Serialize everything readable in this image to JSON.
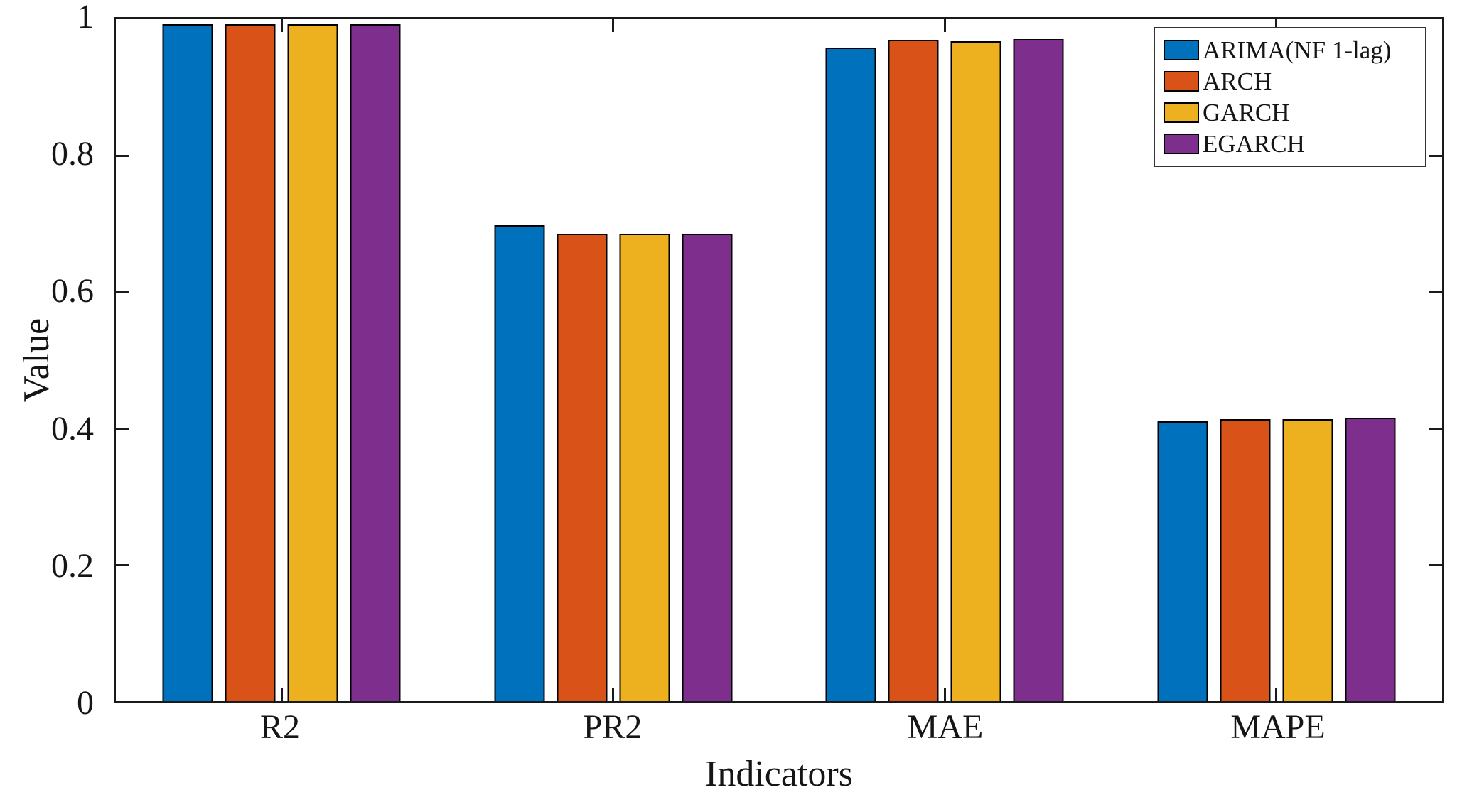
{
  "figure": {
    "background": "#ffffff",
    "axis_color": "#1a1a1a",
    "bar_edge_color": "#000000"
  },
  "chart_data": {
    "type": "bar",
    "title": "",
    "xlabel": "Indicators",
    "ylabel": "Value",
    "categories": [
      "R2",
      "PR2",
      "MAE",
      "MAPE"
    ],
    "series": [
      {
        "name": "ARIMA(NF 1-lag)",
        "color": "#0072BD",
        "values": [
          0.993,
          0.698,
          0.958,
          0.41
        ]
      },
      {
        "name": "ARCH",
        "color": "#D95319",
        "values": [
          0.993,
          0.685,
          0.97,
          0.414
        ]
      },
      {
        "name": "GARCH",
        "color": "#EDB120",
        "values": [
          0.993,
          0.685,
          0.968,
          0.414
        ]
      },
      {
        "name": "EGARCH",
        "color": "#7E2F8E",
        "values": [
          0.993,
          0.685,
          0.971,
          0.416
        ]
      }
    ],
    "ylim": [
      0,
      1
    ],
    "yticks": [
      {
        "value": 0,
        "label": "0"
      },
      {
        "value": 0.2,
        "label": "0.2"
      },
      {
        "value": 0.4,
        "label": "0.4"
      },
      {
        "value": 0.6,
        "label": "0.6"
      },
      {
        "value": 0.8,
        "label": "0.8"
      },
      {
        "value": 1,
        "label": "1"
      }
    ],
    "grid": false,
    "legend_position": "top-right"
  }
}
